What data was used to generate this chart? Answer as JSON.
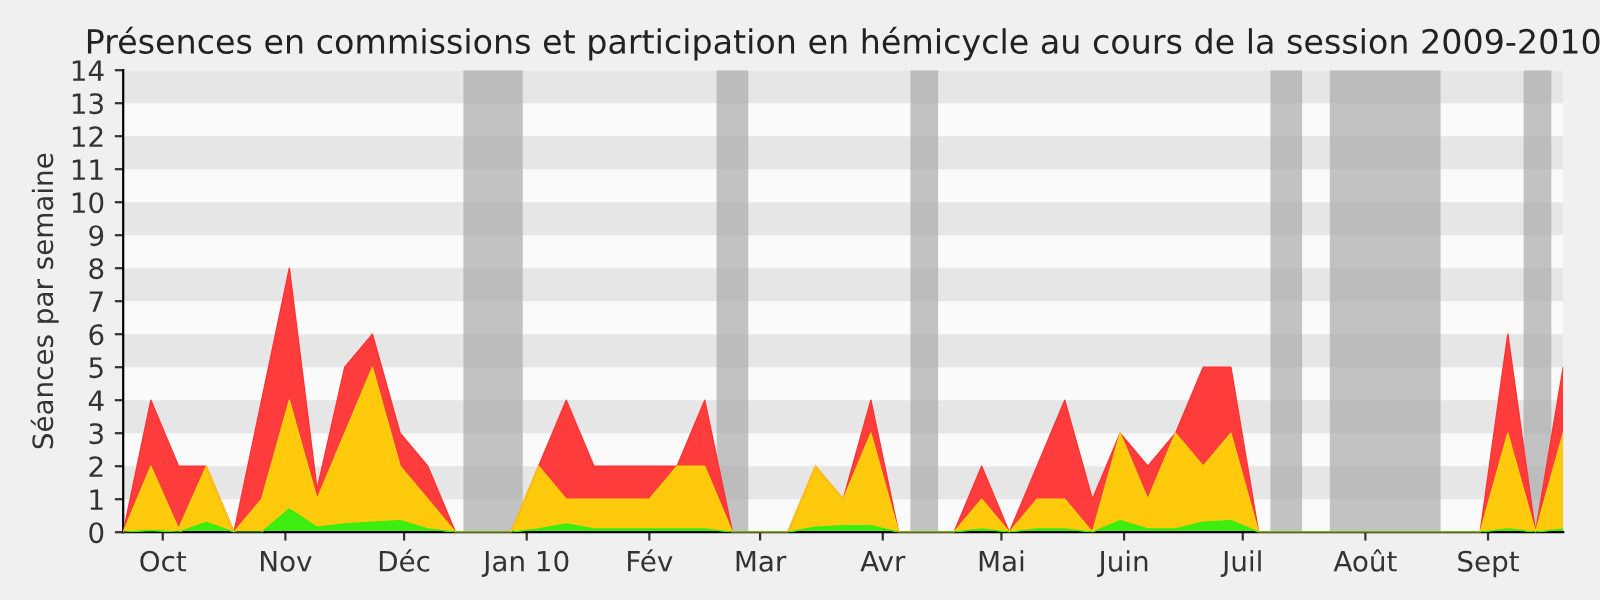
{
  "chart_data": {
    "type": "area",
    "title": "Présences en commissions et participation en hémicycle au cours de la session 2009-2010",
    "ylabel": "Séances par semaine",
    "x": [
      "2009-09-21",
      "2009-09-28",
      "2009-10-05",
      "2009-10-12",
      "2009-10-19",
      "2009-10-26",
      "2009-11-02",
      "2009-11-09",
      "2009-11-16",
      "2009-11-23",
      "2009-11-30",
      "2009-12-07",
      "2009-12-14",
      "2009-12-21",
      "2009-12-28",
      "2010-01-04",
      "2010-01-11",
      "2010-01-18",
      "2010-01-25",
      "2010-02-01",
      "2010-02-08",
      "2010-02-15",
      "2010-02-22",
      "2010-03-01",
      "2010-03-08",
      "2010-03-15",
      "2010-03-22",
      "2010-03-29",
      "2010-04-05",
      "2010-04-12",
      "2010-04-19",
      "2010-04-26",
      "2010-05-03",
      "2010-05-10",
      "2010-05-17",
      "2010-05-24",
      "2010-05-31",
      "2010-06-07",
      "2010-06-14",
      "2010-06-21",
      "2010-06-28",
      "2010-07-05",
      "2010-07-12",
      "2010-07-19",
      "2010-07-26",
      "2010-08-02",
      "2010-08-09",
      "2010-08-16",
      "2010-08-23",
      "2010-08-30",
      "2010-09-06",
      "2010-09-13",
      "2010-09-20"
    ],
    "series": [
      {
        "color": "#ff3333",
        "values": [
          0,
          4,
          2,
          2,
          0,
          4,
          8,
          1.3,
          5,
          6,
          3,
          2,
          0,
          0,
          0,
          2,
          4,
          2,
          2,
          2,
          2,
          4,
          0,
          0,
          0,
          2,
          1,
          4,
          0,
          0,
          0,
          2,
          0,
          2,
          4,
          1,
          3,
          2,
          3,
          5,
          5,
          0,
          0,
          0,
          0,
          0,
          0,
          0,
          0,
          0,
          6,
          0,
          5
        ]
      },
      {
        "color": "#ffd20a",
        "values": [
          0,
          2,
          0.1,
          2,
          0,
          1,
          4,
          1,
          3,
          5,
          2,
          1,
          0,
          0,
          0,
          2,
          1,
          1,
          1,
          1,
          2,
          2,
          0,
          0,
          0,
          2,
          1,
          3,
          0,
          0,
          0,
          1,
          0,
          1,
          1,
          0,
          3,
          1,
          3,
          2,
          3,
          0,
          0,
          0,
          0,
          0,
          0,
          0,
          0,
          0,
          3,
          0,
          3
        ]
      },
      {
        "color": "#33ee11",
        "values": [
          0,
          0.05,
          0,
          0.3,
          0,
          0,
          0.7,
          0.15,
          0.25,
          0.3,
          0.35,
          0.1,
          0,
          0,
          0,
          0.1,
          0.25,
          0.1,
          0.1,
          0.1,
          0.1,
          0.1,
          0,
          0,
          0,
          0.15,
          0.2,
          0.2,
          0,
          0,
          0,
          0.1,
          0,
          0.1,
          0.1,
          0,
          0.35,
          0.1,
          0.1,
          0.3,
          0.35,
          0,
          0,
          0,
          0,
          0,
          0,
          0,
          0,
          0,
          0.1,
          0,
          0.1
        ]
      }
    ],
    "xlim": [
      "2009-09-21",
      "2010-09-20"
    ],
    "ylim": [
      0,
      14
    ],
    "yticks": [
      0,
      1,
      2,
      3,
      4,
      5,
      6,
      7,
      8,
      9,
      10,
      11,
      12,
      13,
      14
    ],
    "xticks": [
      {
        "value": "2009-10-01",
        "label": "Oct"
      },
      {
        "value": "2009-11-01",
        "label": "Nov"
      },
      {
        "value": "2009-12-01",
        "label": "Déc"
      },
      {
        "value": "2010-01-01",
        "label": "Jan 10"
      },
      {
        "value": "2010-02-01",
        "label": "Fév"
      },
      {
        "value": "2010-03-01",
        "label": "Mar"
      },
      {
        "value": "2010-04-01",
        "label": "Avr"
      },
      {
        "value": "2010-05-01",
        "label": "Mai"
      },
      {
        "value": "2010-06-01",
        "label": "Juin"
      },
      {
        "value": "2010-07-01",
        "label": "Juil"
      },
      {
        "value": "2010-08-01",
        "label": "Août"
      },
      {
        "value": "2010-09-01",
        "label": "Sept"
      }
    ],
    "bands": [
      {
        "axis": "x",
        "from": "2009-12-16",
        "to": "2009-12-31",
        "color": "#aaaaaa"
      },
      {
        "axis": "x",
        "from": "2010-02-18",
        "to": "2010-02-26",
        "color": "#aaaaaa"
      },
      {
        "axis": "x",
        "from": "2010-04-08",
        "to": "2010-04-15",
        "color": "#aaaaaa"
      },
      {
        "axis": "x",
        "from": "2010-07-08",
        "to": "2010-07-16",
        "color": "#aaaaaa"
      },
      {
        "axis": "x",
        "from": "2010-07-23",
        "to": "2010-08-20",
        "color": "#aaaaaa"
      },
      {
        "axis": "x",
        "from": "2010-09-10",
        "to": "2010-09-17",
        "color": "#aaaaaa"
      }
    ],
    "line_style": "solid"
  }
}
